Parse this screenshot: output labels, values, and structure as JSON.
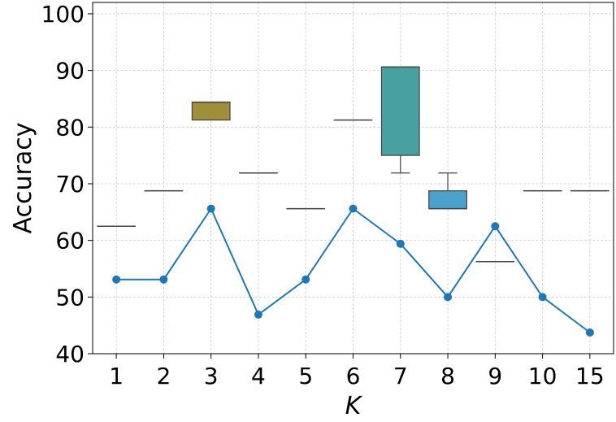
{
  "chart_data": {
    "type": "box",
    "xlabel": "K",
    "ylabel": "Accuracy",
    "ylim": [
      40,
      102
    ],
    "yticks": [
      40,
      50,
      60,
      70,
      80,
      90,
      100
    ],
    "categories": [
      "1",
      "2",
      "3",
      "4",
      "5",
      "6",
      "7",
      "8",
      "9",
      "10",
      "15"
    ],
    "grid": true,
    "box_series": [
      {
        "category": "1",
        "min": 62.5,
        "q1": 62.5,
        "median": 62.5,
        "q3": 62.5,
        "max": 62.5,
        "color": "#3a67a0"
      },
      {
        "category": "2",
        "min": 68.75,
        "q1": 68.75,
        "median": 68.75,
        "q3": 68.75,
        "max": 68.75,
        "color": "#e08a2c"
      },
      {
        "category": "3",
        "min": 81.25,
        "q1": 81.25,
        "median": 84.4,
        "q3": 84.4,
        "max": 84.4,
        "color": "#a08f3a"
      },
      {
        "category": "4",
        "min": 71.9,
        "q1": 71.9,
        "median": 71.9,
        "q3": 71.9,
        "max": 71.9,
        "color": "#c44e52"
      },
      {
        "category": "5",
        "min": 65.6,
        "q1": 65.6,
        "median": 65.6,
        "q3": 65.6,
        "max": 65.6,
        "color": "#8172b2"
      },
      {
        "category": "6",
        "min": 81.25,
        "q1": 81.25,
        "median": 81.25,
        "q3": 81.25,
        "max": 81.25,
        "color": "#937860"
      },
      {
        "category": "7",
        "min": 71.9,
        "q1": 75.0,
        "median": 90.6,
        "q3": 90.6,
        "max": 90.6,
        "color": "#48a0a0"
      },
      {
        "category": "8",
        "min": 65.6,
        "q1": 65.6,
        "median": 65.6,
        "q3": 68.75,
        "max": 71.9,
        "color": "#4ba0cc"
      },
      {
        "category": "9",
        "min": 56.25,
        "q1": 56.25,
        "median": 56.25,
        "q3": 56.25,
        "max": 56.25,
        "color": "#8c8c8c"
      },
      {
        "category": "10",
        "min": 68.75,
        "q1": 68.75,
        "median": 68.75,
        "q3": 68.75,
        "max": 68.75,
        "color": "#64b5cd"
      },
      {
        "category": "15",
        "min": 68.75,
        "q1": 68.75,
        "median": 68.75,
        "q3": 68.75,
        "max": 68.75,
        "color": "#4c72b0"
      }
    ],
    "line_series": {
      "color": "#1f77b4",
      "values": [
        53.1,
        53.1,
        65.6,
        46.9,
        53.1,
        65.6,
        59.4,
        50.0,
        62.5,
        50.0,
        43.75
      ]
    }
  }
}
